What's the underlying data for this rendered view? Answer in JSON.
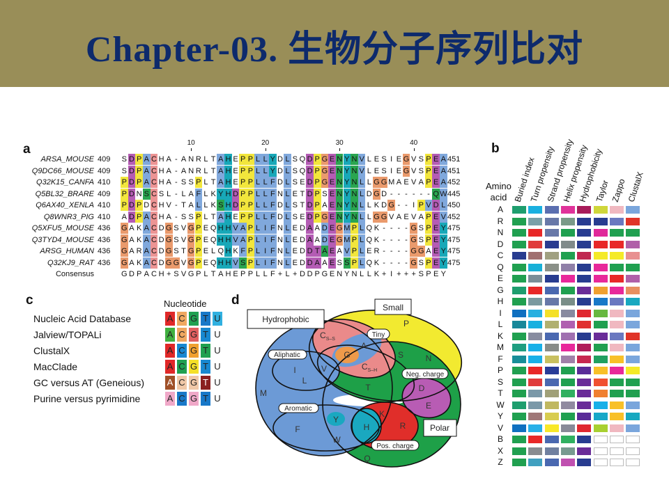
{
  "slide": {
    "title": "Chapter-03. 生物分子序列比对",
    "band_color": "#998e58",
    "title_color": "#0d2a6c"
  },
  "panel_a": {
    "label": "a",
    "ticks": [
      {
        "col": 10,
        "label": "10"
      },
      {
        "col": 20,
        "label": "20"
      },
      {
        "col": 30,
        "label": "30"
      },
      {
        "col": 40,
        "label": "40"
      }
    ],
    "residue_colors": {
      "b": "#80a8dc",
      "c": "#18a8b8",
      "m": "#b45cb4",
      "y": "#f2e63c",
      "o": "#ea9a6c",
      "p": "#ec9494",
      "g": "#2aa550"
    },
    "rows": [
      {
        "name": "ARSA_MOUSE",
        "start": "409",
        "seq": "SDPACHA-ANRLTAHEPPLLYDLSQDPGENYNVLESIEGVSPEA",
        "end": "451",
        "colors": ".mybp........bc.yybbc.b..myomgcgb.....o..ymb"
      },
      {
        "name": "Q9DC66_MOUSE",
        "start": "409",
        "seq": "SDPACHA-ANRLTAHEPPLLYDLSQDPGENYNVLESIEGVSPEA",
        "end": "451",
        "colors": ".mybp........bc.yybbc.b..myomgcgb.....o..ymb"
      },
      {
        "name": "Q32K15_CANFA",
        "start": "410",
        "seq": "PDPACHA-SSPLTAHEPPLLFDLSEDPGENYNLLGGMAEVAPEA",
        "end": "452",
        "colors": "ymybp.....y..bc.yybbb.b..myomgcgb.oo.....ymb"
      },
      {
        "name": "Q5BL32_BRARE",
        "start": "409",
        "seq": "PDNSCSL-LAFLKYHDPPLLFNLETDPSENYNLDGD------QW",
        "end": "445",
        "colors": "ym.gp.....b..ccmyybbb.b..my.mgcgb.o.......gb"
      },
      {
        "name": "Q6AX40_XENLA",
        "start": "410",
        "seq": "PDPDCHV-TALLKSHDPPLLFDLSTDPAENYNLLKDG--IPVDL",
        "end": "450",
        "colors": "ymy.p.....b..gcmyybbb.b..my.mgcgb...o...ybmb"
      },
      {
        "name": "Q8WNR3_PIG",
        "start": "410",
        "seq": "ADPACHA-SSPLTAHEPPLLFDLSEDPGENYNLLGGVAEVAPEV",
        "end": "452",
        "colors": ".mybp.....y..bc.yybbb.b..myomgcgb.oo.....ymb"
      },
      {
        "name": "Q5XFU5_MOUSE",
        "start": "436",
        "seq": "GAKACDGSVGPEQHHVAPLIFNLEDAADEGMPLQK----GSPEY",
        "end": "475",
        "colors": "o..bp.o..oy..ccbbybbb.b..m.bmobyb......o.ymc"
      },
      {
        "name": "Q3TYD4_MOUSE",
        "start": "436",
        "seq": "GAKACDGSVGPEQHHVAPLIFNLEDAADEGMPLQK----GSPEY",
        "end": "475",
        "colors": "o..bp.o..oy..ccbbybbb.b..m.bmobyb......o.ymc"
      },
      {
        "name": "ARSG_HUMAN",
        "start": "436",
        "seq": "GARACDGSTGPELQHKFPLIFNLEDDTAEAVPLER----GGAEY",
        "end": "475",
        "colors": "o..bp.o..oy...c.bybbb.b..mmgm.byb......oo.mc"
      },
      {
        "name": "Q32KJ9_RAT",
        "start": "436",
        "seq": "GAKACDGGVGPEQHHVSPLIFNLEDDAAESSPLQK----GSPEY",
        "end": "475",
        "colors": "o..bp.oo.oy..ccbgybbb.b..mm.m.gyb......o.ymc"
      }
    ],
    "consensus": {
      "name": "Consensus",
      "seq": "GDPACH+SVGPLTAHEPPLLF+L+DDPGENYNLLK+I+++SPEY"
    }
  },
  "panel_b": {
    "label": "b",
    "row_header": [
      "Amino",
      "acid"
    ],
    "columns": [
      "Buried index",
      "Turn propensity",
      "Strand propensity",
      "Helix propensity",
      "Hydrophobicity",
      "Taylor",
      "Zappo",
      "ClustalX"
    ],
    "rows": [
      {
        "aa": "A",
        "colors": [
          "#1e9e6e",
          "#1ab0e0",
          "#5b6fb0",
          "#e0339a",
          "#a81c5a",
          "#cfd63a",
          "#f0b8c0",
          "#7aa6dc"
        ]
      },
      {
        "aa": "R",
        "colors": [
          "#20a050",
          "#7aa0a8",
          "#6878a8",
          "#7a9a88",
          "#283c90",
          "#283c90",
          "#6a78c0",
          "#e03428"
        ]
      },
      {
        "aa": "N",
        "colors": [
          "#20a050",
          "#e82828",
          "#6878a8",
          "#20a050",
          "#283c90",
          "#e0289a",
          "#20a050",
          "#20a050"
        ]
      },
      {
        "aa": "D",
        "colors": [
          "#20a050",
          "#e03c3c",
          "#2a3c90",
          "#808a8a",
          "#283c90",
          "#e82828",
          "#e82828",
          "#b060a8"
        ]
      },
      {
        "aa": "C",
        "colors": [
          "#283c90",
          "#a07070",
          "#a0a080",
          "#20a050",
          "#c02850",
          "#f4ea28",
          "#f4ea28",
          "#e89090"
        ]
      },
      {
        "aa": "Q",
        "colors": [
          "#20a050",
          "#18b0d8",
          "#8a9088",
          "#9080a8",
          "#283c90",
          "#e8289a",
          "#20a050",
          "#20a050"
        ]
      },
      {
        "aa": "E",
        "colors": [
          "#20a050",
          "#7a8e98",
          "#283c90",
          "#e8289a",
          "#283c90",
          "#e8289a",
          "#e82828",
          "#b060a8"
        ]
      },
      {
        "aa": "G",
        "colors": [
          "#1e9e6e",
          "#e82828",
          "#4a68b0",
          "#20a050",
          "#6a2c98",
          "#f0a030",
          "#e8289a",
          "#e89060"
        ]
      },
      {
        "aa": "H",
        "colors": [
          "#20a050",
          "#7a9aa0",
          "#6878a8",
          "#7a8e88",
          "#283c90",
          "#1878c8",
          "#6a78c0",
          "#18a8c0"
        ]
      },
      {
        "aa": "I",
        "colors": [
          "#1070c0",
          "#28b0e0",
          "#f4e028",
          "#888aa0",
          "#e02830",
          "#68b840",
          "#f0b8c0",
          "#7aa6dc"
        ]
      },
      {
        "aa": "L",
        "colors": [
          "#18889a",
          "#18b0e0",
          "#b0b070",
          "#b060b0",
          "#e03030",
          "#20a050",
          "#f0b8c0",
          "#7aa6dc"
        ]
      },
      {
        "aa": "K",
        "colors": [
          "#20a050",
          "#888ca0",
          "#4a68b0",
          "#a070b0",
          "#283c90",
          "#6a2c98",
          "#6a78c0",
          "#e03428"
        ]
      },
      {
        "aa": "M",
        "colors": [
          "#1e9e80",
          "#18b0e8",
          "#888c88",
          "#e8289a",
          "#b01c5a",
          "#20a050",
          "#f0b8c0",
          "#7aa6dc"
        ]
      },
      {
        "aa": "F",
        "colors": [
          "#188e98",
          "#18b0e8",
          "#c8c060",
          "#a080a8",
          "#c82850",
          "#20a060",
          "#f8c028",
          "#7aa6dc"
        ]
      },
      {
        "aa": "P",
        "colors": [
          "#20a050",
          "#e82828",
          "#283c98",
          "#20a050",
          "#5a2c98",
          "#f8c028",
          "#e8289a",
          "#f4ea28"
        ]
      },
      {
        "aa": "S",
        "colors": [
          "#20a050",
          "#e03c3c",
          "#4a68b0",
          "#20a050",
          "#6a2c98",
          "#f05030",
          "#20a050",
          "#20a050"
        ]
      },
      {
        "aa": "T",
        "colors": [
          "#20a050",
          "#7a98a8",
          "#a0a078",
          "#30b060",
          "#6a2c98",
          "#f08030",
          "#20a050",
          "#20a050"
        ]
      },
      {
        "aa": "W",
        "colors": [
          "#1e9e6e",
          "#7a98a8",
          "#c0b860",
          "#908aa0",
          "#6a2c98",
          "#18b0e8",
          "#f8c028",
          "#7aa6dc"
        ]
      },
      {
        "aa": "Y",
        "colors": [
          "#20a050",
          "#a07878",
          "#d8cc50",
          "#20a050",
          "#5a2c98",
          "#18a8c8",
          "#f8c028",
          "#18a8c0"
        ]
      },
      {
        "aa": "V",
        "colors": [
          "#1070c0",
          "#28b0e8",
          "#f8e828",
          "#888a98",
          "#e02830",
          "#a8d030",
          "#f0b8c0",
          "#7aa6dc"
        ]
      },
      {
        "aa": "B",
        "colors": [
          "#20a050",
          "#e82828",
          "#4a68b0",
          "#30b060",
          "#283c90",
          "",
          "",
          ""
        ]
      },
      {
        "aa": "X",
        "colors": [
          "#20a050",
          "#888c90",
          "#7080a0",
          "#789a90",
          "#6a2c98",
          "",
          "",
          ""
        ]
      },
      {
        "aa": "Z",
        "colors": [
          "#20a050",
          "#40a0c0",
          "#4a68b0",
          "#c050b0",
          "#283c90",
          "",
          "",
          ""
        ]
      }
    ]
  },
  "panel_c": {
    "label": "c",
    "header": "Nucleotide",
    "schemes": [
      {
        "name": "Nucleic Acid Database",
        "bases": [
          {
            "b": "A",
            "bg": "#e02828",
            "fg": "#222"
          },
          {
            "b": "C",
            "bg": "#f0a860",
            "fg": "#222"
          },
          {
            "b": "G",
            "bg": "#20a050",
            "fg": "#222"
          },
          {
            "b": "T",
            "bg": "#1878c8",
            "fg": "#222"
          },
          {
            "b": "U",
            "bg": "#30b0e0",
            "fg": "#222"
          }
        ]
      },
      {
        "name": "Jalview/TOPALi",
        "bases": [
          {
            "b": "A",
            "bg": "#40b040",
            "fg": "#222"
          },
          {
            "b": "C",
            "bg": "#f0a860",
            "fg": "#222"
          },
          {
            "b": "G",
            "bg": "#e06060",
            "fg": "#222"
          },
          {
            "b": "T",
            "bg": "#1888d0",
            "fg": "#222"
          },
          {
            "b": "U",
            "bg": "",
            "fg": "#222"
          }
        ]
      },
      {
        "name": "ClustalX",
        "bases": [
          {
            "b": "A",
            "bg": "#e02828",
            "fg": "#222"
          },
          {
            "b": "C",
            "bg": "#1888d0",
            "fg": "#222"
          },
          {
            "b": "G",
            "bg": "#f0a030",
            "fg": "#222"
          },
          {
            "b": "T",
            "bg": "#20a050",
            "fg": "#222"
          },
          {
            "b": "U",
            "bg": "",
            "fg": "#222"
          }
        ]
      },
      {
        "name": "MacClade",
        "bases": [
          {
            "b": "A",
            "bg": "#e02828",
            "fg": "#222"
          },
          {
            "b": "C",
            "bg": "#20a050",
            "fg": "#222"
          },
          {
            "b": "G",
            "bg": "#f4e028",
            "fg": "#222"
          },
          {
            "b": "T",
            "bg": "#1888d0",
            "fg": "#222"
          },
          {
            "b": "U",
            "bg": "",
            "fg": "#222"
          }
        ]
      },
      {
        "name": "GC versus AT (Geneious)",
        "bases": [
          {
            "b": "A",
            "bg": "#a05028",
            "fg": "#fff"
          },
          {
            "b": "C",
            "bg": "#f0c8a8",
            "fg": "#222"
          },
          {
            "b": "G",
            "bg": "#f0c8a8",
            "fg": "#222"
          },
          {
            "b": "T",
            "bg": "#8a2020",
            "fg": "#fff"
          },
          {
            "b": "U",
            "bg": "",
            "fg": "#222"
          }
        ]
      },
      {
        "name": "Purine versus pyrimidine",
        "bases": [
          {
            "b": "A",
            "bg": "#f0a8c8",
            "fg": "#222"
          },
          {
            "b": "C",
            "bg": "#1878c8",
            "fg": "#222"
          },
          {
            "b": "G",
            "bg": "#f0a8c8",
            "fg": "#222"
          },
          {
            "b": "T",
            "bg": "#1878c8",
            "fg": "#222"
          },
          {
            "b": "U",
            "bg": "",
            "fg": "#222"
          }
        ]
      }
    ]
  },
  "panel_d": {
    "label": "d",
    "sets": {
      "hydrophobic": "Hydrophobic",
      "small": "Small",
      "tiny": "Tiny",
      "aliphatic": "Aliphatic",
      "neg_charge": "Neg. charge",
      "aromatic": "Aromatic",
      "polar": "Polar",
      "pos_charge": "Pos. charge"
    },
    "residues": {
      "P": "P",
      "Css": "C",
      "Css_sub": "S–S",
      "A": "A",
      "G": "G",
      "S": "S",
      "N": "N",
      "V": "V",
      "I": "I",
      "L": "L",
      "Csh": "C",
      "Csh_sub": "S–H",
      "M": "M",
      "T": "T",
      "D": "D",
      "E": "E",
      "Y": "Y",
      "K": "K",
      "R": "R",
      "F": "F",
      "H": "H",
      "W": "W",
      "Q": "Q"
    },
    "colors": {
      "hydrophobic": "#6c9ad6",
      "small": "#f2ea30",
      "polar": "#1ea048",
      "tiny_cys": "#ea8a8a",
      "neg": "#b85cb4",
      "pos": "#e02e2a",
      "aromatic_cyan": "#1aa8c0",
      "gly": "#ee9a4a"
    }
  }
}
